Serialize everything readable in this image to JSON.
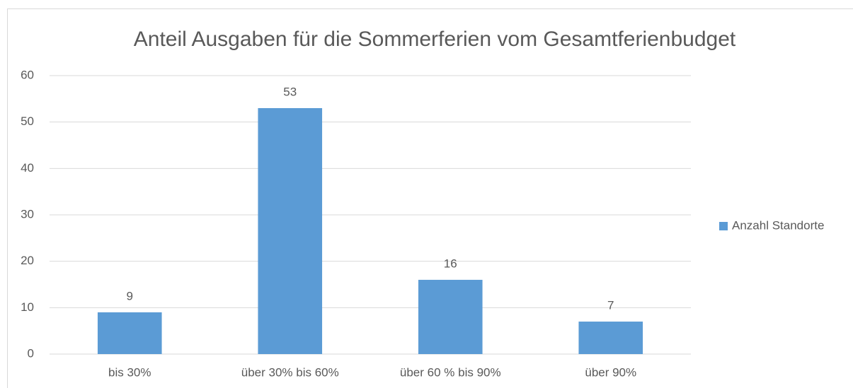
{
  "chart_data": {
    "type": "bar",
    "title": "Anteil Ausgaben für die Sommerferien vom Gesamtferienbudget",
    "categories": [
      "bis 30%",
      "über 30% bis 60%",
      "über 60 % bis 90%",
      "über 90%"
    ],
    "series": [
      {
        "name": "Anzahl Standorte",
        "color": "#5b9bd5",
        "values": [
          9,
          53,
          16,
          7
        ]
      }
    ],
    "ylim": [
      0,
      60
    ],
    "yticks": [
      0,
      10,
      20,
      30,
      40,
      50,
      60
    ],
    "grid": true,
    "legend": "right"
  }
}
